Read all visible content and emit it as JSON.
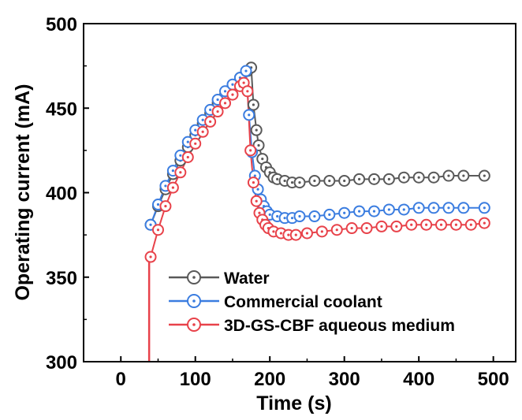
{
  "chart_data": {
    "type": "scatter",
    "xlabel": "Time (s)",
    "ylabel": "Operating current (mA)",
    "xlim": [
      -50,
      530
    ],
    "ylim": [
      300,
      500
    ],
    "xticks": [
      "0",
      "100",
      "200",
      "300",
      "400",
      "500"
    ],
    "xtick_values": [
      0,
      100,
      200,
      300,
      400,
      500
    ],
    "yticks": [
      "300",
      "350",
      "400",
      "450",
      "500"
    ],
    "ytick_values": [
      300,
      350,
      400,
      450,
      500
    ],
    "legend_position": "bottom-right",
    "marker": "open-circle-with-dot",
    "series": [
      {
        "name": "Water",
        "color": "#595959",
        "points": [
          [
            40,
            381
          ],
          [
            50,
            392
          ],
          [
            60,
            402
          ],
          [
            70,
            411
          ],
          [
            80,
            419
          ],
          [
            90,
            427
          ],
          [
            100,
            434
          ],
          [
            110,
            441
          ],
          [
            120,
            447
          ],
          [
            130,
            453
          ],
          [
            140,
            458
          ],
          [
            150,
            463
          ],
          [
            160,
            468
          ],
          [
            170,
            472
          ],
          [
            175,
            474
          ],
          [
            178,
            452
          ],
          [
            182,
            437
          ],
          [
            185,
            428
          ],
          [
            190,
            420
          ],
          [
            195,
            415
          ],
          [
            200,
            412
          ],
          [
            205,
            409
          ],
          [
            210,
            408
          ],
          [
            220,
            407
          ],
          [
            230,
            406
          ],
          [
            240,
            406
          ],
          [
            260,
            407
          ],
          [
            280,
            407
          ],
          [
            300,
            407
          ],
          [
            320,
            408
          ],
          [
            340,
            408
          ],
          [
            360,
            408
          ],
          [
            380,
            409
          ],
          [
            400,
            409
          ],
          [
            420,
            409
          ],
          [
            440,
            410
          ],
          [
            460,
            410
          ],
          [
            488,
            410
          ]
        ]
      },
      {
        "name": "Commercial coolant",
        "color": "#3b7de0",
        "points": [
          [
            40,
            381
          ],
          [
            50,
            393
          ],
          [
            60,
            404
          ],
          [
            70,
            413
          ],
          [
            80,
            422
          ],
          [
            90,
            430
          ],
          [
            100,
            437
          ],
          [
            110,
            443
          ],
          [
            120,
            449
          ],
          [
            130,
            455
          ],
          [
            140,
            460
          ],
          [
            150,
            464
          ],
          [
            160,
            468
          ],
          [
            168,
            472
          ],
          [
            172,
            446
          ],
          [
            176,
            424
          ],
          [
            180,
            410
          ],
          [
            184,
            402
          ],
          [
            188,
            396
          ],
          [
            192,
            392
          ],
          [
            196,
            389
          ],
          [
            200,
            387
          ],
          [
            210,
            386
          ],
          [
            220,
            385
          ],
          [
            230,
            385
          ],
          [
            240,
            386
          ],
          [
            260,
            386
          ],
          [
            280,
            387
          ],
          [
            300,
            388
          ],
          [
            320,
            389
          ],
          [
            340,
            389
          ],
          [
            360,
            390
          ],
          [
            380,
            390
          ],
          [
            400,
            391
          ],
          [
            420,
            391
          ],
          [
            440,
            391
          ],
          [
            460,
            391
          ],
          [
            488,
            391
          ]
        ]
      },
      {
        "name": "3D-GS-CBF aqueous medium",
        "color": "#e8424a",
        "points": [
          [
            40,
            362
          ],
          [
            50,
            378
          ],
          [
            60,
            392
          ],
          [
            70,
            403
          ],
          [
            80,
            412
          ],
          [
            90,
            421
          ],
          [
            100,
            429
          ],
          [
            110,
            436
          ],
          [
            120,
            442
          ],
          [
            130,
            448
          ],
          [
            140,
            453
          ],
          [
            150,
            458
          ],
          [
            160,
            463
          ],
          [
            165,
            465
          ],
          [
            170,
            460
          ],
          [
            174,
            425
          ],
          [
            178,
            406
          ],
          [
            182,
            395
          ],
          [
            186,
            388
          ],
          [
            190,
            384
          ],
          [
            194,
            381
          ],
          [
            198,
            379
          ],
          [
            205,
            377
          ],
          [
            215,
            376
          ],
          [
            225,
            375
          ],
          [
            235,
            375
          ],
          [
            250,
            376
          ],
          [
            270,
            377
          ],
          [
            290,
            378
          ],
          [
            310,
            379
          ],
          [
            330,
            379
          ],
          [
            350,
            380
          ],
          [
            370,
            380
          ],
          [
            390,
            381
          ],
          [
            410,
            381
          ],
          [
            430,
            381
          ],
          [
            450,
            381
          ],
          [
            470,
            381
          ],
          [
            488,
            382
          ]
        ]
      }
    ],
    "series_lines": [
      {
        "series": "3D-GS-CBF aqueous medium",
        "color": "#e8424a",
        "segments": [
          [
            [
              38,
              300
            ],
            [
              38,
              362
            ]
          ]
        ]
      }
    ]
  }
}
